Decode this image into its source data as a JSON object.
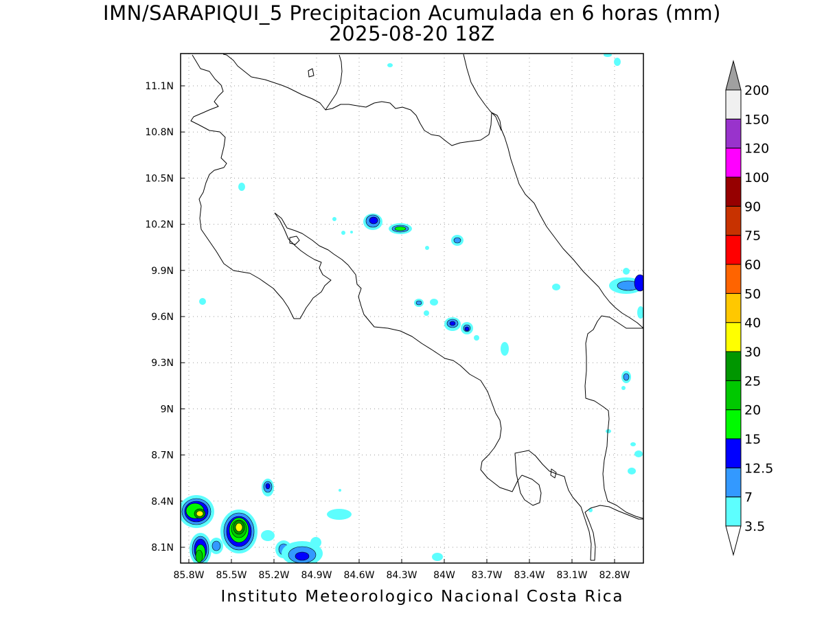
{
  "title": "IMN/SARAPIQUI_5 Precipitacion Acumulada en 6 horas (mm)",
  "subtitle": "2025-08-20 18Z",
  "credit": "Instituto Meteorologico Nacional Costa Rica",
  "map": {
    "lon_range": [
      -86.0,
      -83.0
    ],
    "lat_range": [
      8.0,
      11.2
    ],
    "grid": "dotted",
    "lon_ticks": [
      {
        "value": -85.8,
        "label": "85.8W"
      },
      {
        "value": -85.5,
        "label": "85.5W"
      },
      {
        "value": -85.2,
        "label": "85.2W"
      },
      {
        "value": -84.9,
        "label": "84.9W"
      },
      {
        "value": -84.6,
        "label": "84.6W"
      },
      {
        "value": -84.3,
        "label": "84.3W"
      },
      {
        "value": -84.0,
        "label": "84W"
      },
      {
        "value": -83.7,
        "label": "83.7W"
      },
      {
        "value": -83.4,
        "label": "83.4W"
      },
      {
        "value": -83.1,
        "label": "83.1W"
      },
      {
        "value": -82.8,
        "label": "82.8W"
      }
    ],
    "lat_ticks": [
      {
        "value": 11.1,
        "label": "11.1N"
      },
      {
        "value": 10.8,
        "label": "10.8N"
      },
      {
        "value": 10.5,
        "label": "10.5N"
      },
      {
        "value": 10.2,
        "label": "10.2N"
      },
      {
        "value": 9.9,
        "label": "9.9N"
      },
      {
        "value": 9.6,
        "label": "9.6N"
      },
      {
        "value": 9.3,
        "label": "9.3N"
      },
      {
        "value": 9.0,
        "label": "9N"
      },
      {
        "value": 8.7,
        "label": "8.7N"
      },
      {
        "value": 8.4,
        "label": "8.4N"
      },
      {
        "value": 8.1,
        "label": "8.1N"
      }
    ]
  },
  "colorbar": {
    "labels": [
      "3.5",
      "7",
      "12.5",
      "15",
      "20",
      "25",
      "30",
      "40",
      "50",
      "60",
      "75",
      "90",
      "100",
      "120",
      "150",
      "200"
    ],
    "colors": [
      "#5dfefe",
      "#3399ff",
      "#0000ff",
      "#00fa00",
      "#00c800",
      "#009600",
      "#ffff00",
      "#ffc800",
      "#ff6400",
      "#ff0000",
      "#c83200",
      "#960000",
      "#ff00ff",
      "#9933cc",
      "#f0f0f0",
      "#a0a0a0"
    ]
  }
}
